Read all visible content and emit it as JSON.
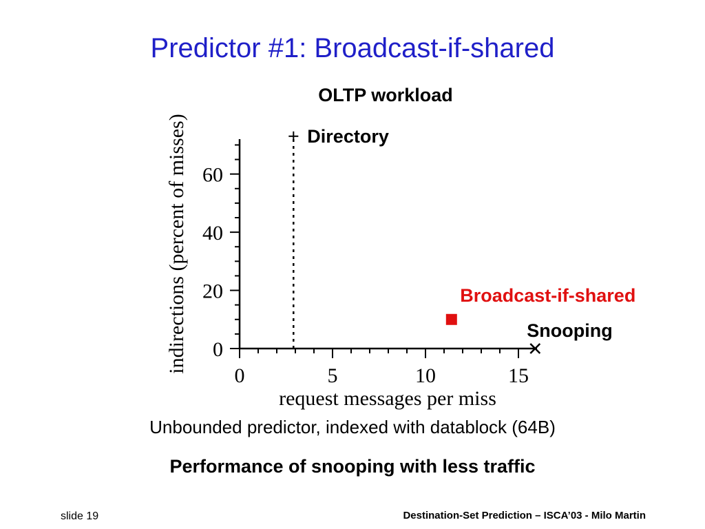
{
  "slide": {
    "title": "Predictor #1: Broadcast-if-shared",
    "subtitle_1": "Unbounded predictor, indexed with datablock (64B)",
    "subtitle_2": "Performance of snooping with less traffic",
    "slide_number": "slide 19",
    "footer": "Destination-Set Prediction – ISCA’03 - Milo Martin"
  },
  "colors": {
    "title": "#1f1fc8",
    "highlight": "#e01010",
    "axis": "#000000"
  },
  "chart_data": {
    "type": "scatter",
    "title": "OLTP workload",
    "xlabel": "request messages per miss",
    "ylabel": "indirections (percent of misses)",
    "xlim": [
      0,
      16
    ],
    "ylim": [
      0,
      72
    ],
    "x_ticks": [
      0,
      5,
      10,
      15
    ],
    "y_ticks": [
      0,
      20,
      40,
      60
    ],
    "grid": false,
    "reference_line": {
      "x": 2.9,
      "style": "dotted"
    },
    "points": [
      {
        "label": "Directory",
        "x": 2.9,
        "y": 73,
        "marker": "plus",
        "color": "#000000"
      },
      {
        "label": "Broadcast-if-shared",
        "x": 11.4,
        "y": 10,
        "marker": "square",
        "color": "#e01010"
      },
      {
        "label": "Snooping",
        "x": 15.9,
        "y": 0,
        "marker": "x",
        "color": "#000000"
      }
    ]
  }
}
